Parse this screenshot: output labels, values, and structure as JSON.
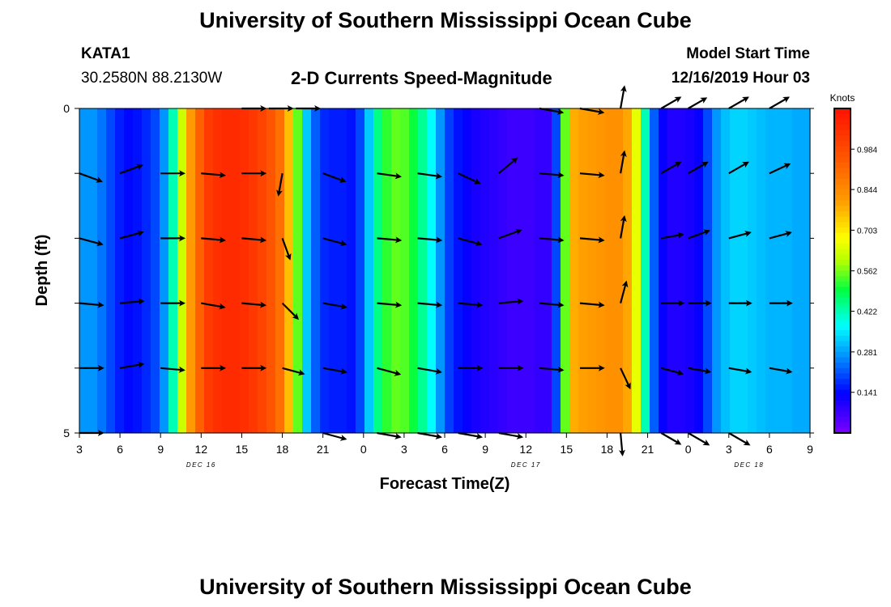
{
  "header": {
    "title": "University of Southern Mississippi Ocean Cube",
    "station_id": "KATA1",
    "coordinates": "30.2580N 88.2130W",
    "subtitle": "2-D Currents Speed-Magnitude",
    "model_start_label": "Model Start Time",
    "model_start_time": "12/16/2019 Hour 03"
  },
  "footer": {
    "title": "University of Southern Mississippi Ocean Cube"
  },
  "chart_data": {
    "type": "heatmap",
    "title": "2-D Currents Speed-Magnitude",
    "xlabel": "Forecast Time(Z)",
    "ylabel": "Depth (ft)",
    "x_range_hours": [
      0,
      54
    ],
    "ylim": [
      0,
      5
    ],
    "y_ticks": [
      "0",
      "5"
    ],
    "x_ticks": [
      "3",
      "6",
      "9",
      "12",
      "15",
      "18",
      "21",
      "0",
      "3",
      "6",
      "9",
      "12",
      "15",
      "18",
      "21",
      "0",
      "3",
      "6",
      "9"
    ],
    "date_labels": [
      {
        "text": "DEC 16",
        "hour": 9
      },
      {
        "text": "DEC 17",
        "hour": 33
      },
      {
        "text": "DEC 18",
        "hour": 49.5
      }
    ],
    "colorbar": {
      "unit_label": "Knots",
      "range": [
        0.0,
        1.125
      ],
      "tick_values": [
        0.984,
        0.844,
        0.703,
        0.562,
        0.422,
        0.281,
        0.141
      ],
      "tick_labels": [
        "0.984",
        "0.844",
        "0.703",
        "0.562",
        "0.422",
        "0.281",
        "0.141"
      ]
    },
    "speed_by_column_knots": [
      0.27,
      0.27,
      0.24,
      0.2,
      0.16,
      0.14,
      0.15,
      0.17,
      0.2,
      0.27,
      0.42,
      0.62,
      0.81,
      0.93,
      1.02,
      1.05,
      1.06,
      1.06,
      1.05,
      1.03,
      1.0,
      0.96,
      0.9,
      0.76,
      0.55,
      0.32,
      0.22,
      0.17,
      0.16,
      0.16,
      0.15,
      0.2,
      0.32,
      0.45,
      0.52,
      0.55,
      0.54,
      0.5,
      0.44,
      0.37,
      0.27,
      0.19,
      0.15,
      0.13,
      0.11,
      0.1,
      0.09,
      0.08,
      0.07,
      0.07,
      0.07,
      0.08,
      0.08,
      0.2,
      0.55,
      0.78,
      0.8,
      0.81,
      0.82,
      0.83,
      0.83,
      0.79,
      0.65,
      0.42,
      0.22,
      0.13,
      0.1,
      0.1,
      0.11,
      0.13,
      0.2,
      0.27,
      0.31,
      0.33,
      0.33,
      0.32,
      0.31,
      0.3,
      0.3,
      0.3,
      0.29,
      0.29
    ],
    "vectors": [
      {
        "row": 0,
        "hours": [
          12,
          14,
          16,
          34,
          37,
          40,
          43,
          45,
          48,
          51
        ],
        "angles_deg": [
          0,
          0,
          0,
          -10,
          -10,
          80,
          30,
          30,
          30,
          30
        ],
        "lengths": [
          0.8,
          0.8,
          0.8,
          0.8,
          0.8,
          0.75,
          0.75,
          0.7,
          0.75,
          0.75
        ]
      },
      {
        "row": 1,
        "hours": [
          0,
          3,
          6,
          9,
          12,
          15,
          18,
          22,
          25,
          28,
          31,
          34,
          37,
          40,
          43,
          45,
          48,
          51
        ],
        "angles_deg": [
          -20,
          20,
          0,
          -5,
          0,
          -100,
          -20,
          -8,
          -8,
          -25,
          40,
          -5,
          -5,
          80,
          30,
          30,
          30,
          25
        ],
        "lengths": [
          0.8,
          0.8,
          0.8,
          0.8,
          0.8,
          0.75,
          0.8,
          0.8,
          0.8,
          0.8,
          0.8,
          0.8,
          0.8,
          0.75,
          0.75,
          0.75,
          0.75,
          0.75
        ]
      },
      {
        "row": 2,
        "hours": [
          0,
          3,
          6,
          9,
          12,
          15,
          18,
          22,
          25,
          28,
          31,
          34,
          37,
          40,
          43,
          45,
          48,
          51
        ],
        "angles_deg": [
          -15,
          15,
          0,
          -5,
          -5,
          -70,
          -15,
          -5,
          -5,
          -15,
          20,
          -5,
          -5,
          80,
          10,
          20,
          15,
          15
        ],
        "lengths": [
          0.8,
          0.8,
          0.8,
          0.8,
          0.8,
          0.75,
          0.8,
          0.8,
          0.8,
          0.8,
          0.8,
          0.8,
          0.8,
          0.75,
          0.75,
          0.75,
          0.75,
          0.75
        ]
      },
      {
        "row": 3,
        "hours": [
          0,
          3,
          6,
          9,
          12,
          15,
          18,
          22,
          25,
          28,
          31,
          34,
          37,
          40,
          43,
          45,
          48,
          51
        ],
        "angles_deg": [
          -5,
          5,
          0,
          -10,
          -5,
          -45,
          -10,
          -5,
          -5,
          -5,
          5,
          -5,
          -5,
          75,
          0,
          0,
          0,
          0
        ],
        "lengths": [
          0.8,
          0.8,
          0.8,
          0.8,
          0.8,
          0.75,
          0.8,
          0.8,
          0.8,
          0.8,
          0.8,
          0.8,
          0.8,
          0.75,
          0.75,
          0.75,
          0.75,
          0.75
        ]
      },
      {
        "row": 4,
        "hours": [
          0,
          3,
          6,
          9,
          12,
          15,
          18,
          22,
          25,
          28,
          31,
          34,
          37,
          40,
          43,
          45,
          48,
          51
        ],
        "angles_deg": [
          0,
          10,
          -5,
          0,
          0,
          -15,
          -10,
          -15,
          -10,
          0,
          0,
          -5,
          0,
          -65,
          -15,
          -10,
          -10,
          -10
        ],
        "lengths": [
          0.8,
          0.8,
          0.8,
          0.8,
          0.8,
          0.75,
          0.8,
          0.8,
          0.8,
          0.8,
          0.8,
          0.8,
          0.8,
          0.75,
          0.75,
          0.75,
          0.75,
          0.75
        ]
      },
      {
        "row": 5,
        "hours": [
          0,
          18,
          22,
          25,
          28,
          31,
          40,
          43,
          45,
          48
        ],
        "angles_deg": [
          0,
          -15,
          -10,
          -10,
          -10,
          -10,
          -85,
          -30,
          -30,
          -30
        ],
        "lengths": [
          0.8,
          0.8,
          0.8,
          0.8,
          0.8,
          0.8,
          0.75,
          0.75,
          0.8,
          0.8
        ]
      }
    ]
  }
}
